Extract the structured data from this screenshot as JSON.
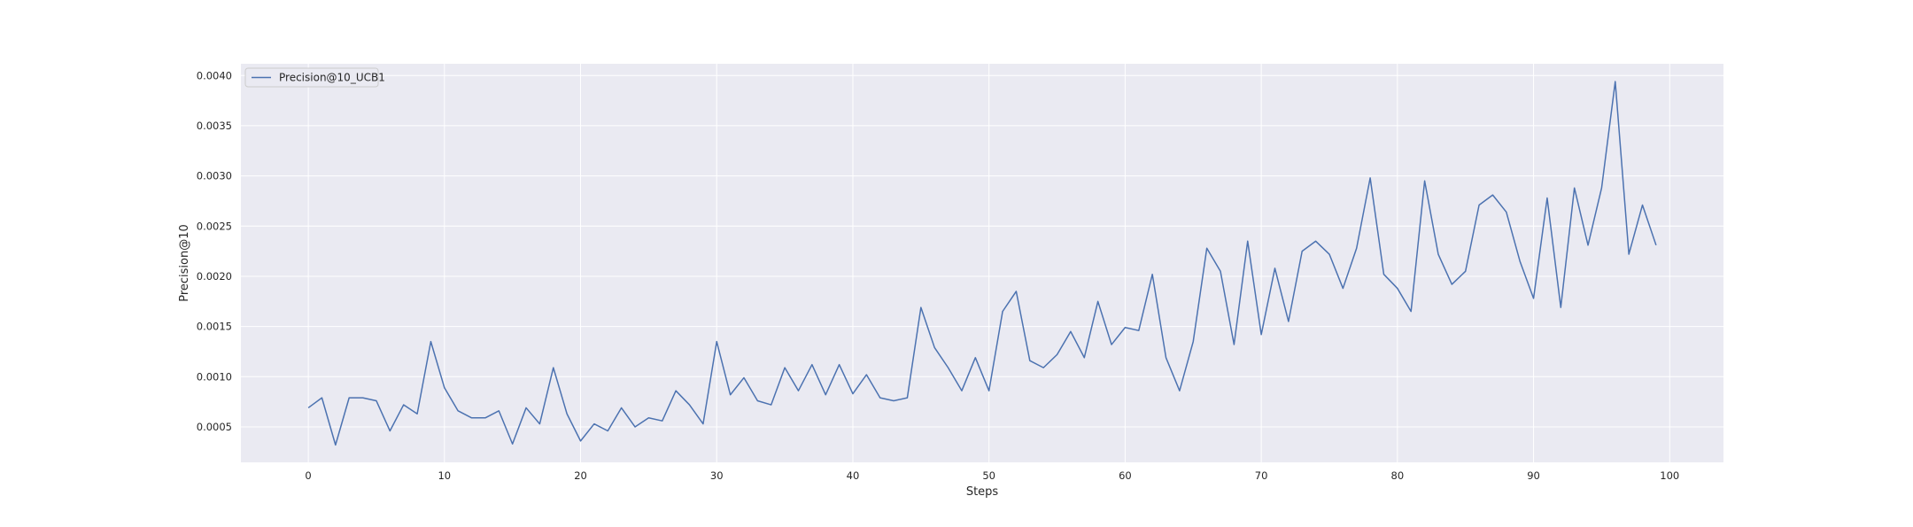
{
  "chart_data": {
    "type": "line",
    "title": "",
    "xlabel": "Steps",
    "ylabel": "Precision@10",
    "xlim": [
      -4.95,
      103.95
    ],
    "ylim": [
      0.000147,
      0.004117
    ],
    "xticks": [
      0,
      10,
      20,
      30,
      40,
      50,
      60,
      70,
      80,
      90,
      100
    ],
    "yticks": [
      0.0005,
      0.001,
      0.0015,
      0.002,
      0.0025,
      0.003,
      0.0035,
      0.004
    ],
    "xtick_labels": [
      "0",
      "10",
      "20",
      "30",
      "40",
      "50",
      "60",
      "70",
      "80",
      "90",
      "100"
    ],
    "ytick_labels": [
      "0.0005",
      "0.0010",
      "0.0015",
      "0.0020",
      "0.0025",
      "0.0030",
      "0.0035",
      "0.0040"
    ],
    "grid": true,
    "legend_position": "top-left",
    "colors": {
      "plot_background": "#eaeaf2",
      "grid": "#ffffff",
      "series": "#4c72b0",
      "text": "#262626"
    },
    "x": [
      0,
      1,
      2,
      3,
      4,
      5,
      6,
      7,
      8,
      9,
      10,
      11,
      12,
      13,
      14,
      15,
      16,
      17,
      18,
      19,
      20,
      21,
      22,
      23,
      24,
      25,
      26,
      27,
      28,
      29,
      30,
      31,
      32,
      33,
      34,
      35,
      36,
      37,
      38,
      39,
      40,
      41,
      42,
      43,
      44,
      45,
      46,
      47,
      48,
      49,
      50,
      51,
      52,
      53,
      54,
      55,
      56,
      57,
      58,
      59,
      60,
      61,
      62,
      63,
      64,
      65,
      66,
      67,
      68,
      69,
      70,
      71,
      72,
      73,
      74,
      75,
      76,
      77,
      78,
      79,
      80,
      81,
      82,
      83,
      84,
      85,
      86,
      87,
      88,
      89,
      90,
      91,
      92,
      93,
      94,
      95,
      96,
      97,
      98,
      99
    ],
    "series": [
      {
        "name": "Precision@10_UCB1",
        "values": [
          0.00069,
          0.00079,
          0.00032,
          0.00079,
          0.00079,
          0.00076,
          0.00046,
          0.00072,
          0.00063,
          0.00135,
          0.00089,
          0.00066,
          0.00059,
          0.00059,
          0.00066,
          0.00033,
          0.00069,
          0.00053,
          0.00109,
          0.00063,
          0.00036,
          0.00053,
          0.00046,
          0.00069,
          0.0005,
          0.00059,
          0.00056,
          0.00086,
          0.00072,
          0.00053,
          0.00135,
          0.00082,
          0.00099,
          0.00076,
          0.00072,
          0.00109,
          0.00086,
          0.00112,
          0.00082,
          0.00112,
          0.00083,
          0.00102,
          0.00079,
          0.00076,
          0.00079,
          0.00169,
          0.00129,
          0.00109,
          0.00086,
          0.00119,
          0.00086,
          0.00165,
          0.00185,
          0.00116,
          0.00109,
          0.00122,
          0.00145,
          0.00119,
          0.00175,
          0.00132,
          0.00149,
          0.00146,
          0.00202,
          0.00119,
          0.00086,
          0.00135,
          0.00228,
          0.00205,
          0.00132,
          0.00235,
          0.00142,
          0.00208,
          0.00155,
          0.00225,
          0.00235,
          0.00222,
          0.00188,
          0.00228,
          0.00298,
          0.00202,
          0.00188,
          0.00165,
          0.00295,
          0.00222,
          0.00192,
          0.00205,
          0.00271,
          0.00281,
          0.00264,
          0.00215,
          0.00178,
          0.00278,
          0.00169,
          0.00288,
          0.00231,
          0.00288,
          0.00394,
          0.00222,
          0.00271,
          0.00231
        ]
      }
    ]
  }
}
